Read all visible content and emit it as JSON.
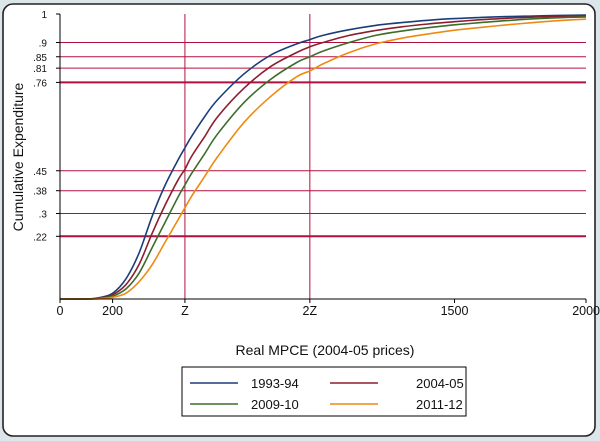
{
  "chart_data": {
    "type": "line",
    "xlabel": "Real MPCE (2004-05 prices)",
    "ylabel": "Cumulative Expenditure",
    "xlim": [
      0,
      2000
    ],
    "ylim": [
      0,
      1
    ],
    "x_ticks": [
      {
        "value": 0,
        "label": "0"
      },
      {
        "value": 200,
        "label": "200"
      },
      {
        "value": 475,
        "label": "Z"
      },
      {
        "value": 950,
        "label": "2Z"
      },
      {
        "value": 1500,
        "label": "1500"
      },
      {
        "value": 2000,
        "label": "2000"
      }
    ],
    "y_ticks": [
      {
        "value": 1,
        "label": "1"
      },
      {
        "value": 0.9,
        "label": ".9"
      },
      {
        "value": 0.85,
        "label": ".85"
      },
      {
        "value": 0.81,
        "label": ".81"
      },
      {
        "value": 0.76,
        "label": ".76"
      },
      {
        "value": 0.45,
        "label": ".45"
      },
      {
        "value": 0.38,
        "label": ".38"
      },
      {
        "value": 0.3,
        "label": ".3"
      },
      {
        "value": 0.22,
        "label": ".22"
      }
    ],
    "reference_lines": {
      "vertical": [
        475,
        950
      ],
      "horizontal": [
        0.9,
        0.85,
        0.81,
        0.76,
        0.45,
        0.38,
        0.3,
        0.22
      ],
      "thick_horizontal": [
        0.76,
        0.22
      ],
      "color": "#b01040"
    },
    "x": [
      0,
      100,
      150,
      200,
      250,
      300,
      350,
      400,
      450,
      475,
      500,
      550,
      600,
      700,
      800,
      900,
      950,
      1000,
      1100,
      1200,
      1300,
      1400,
      1500,
      1600,
      1700,
      1800,
      1900,
      2000
    ],
    "series": [
      {
        "name": "1993-94",
        "color": "#1a3e7a",
        "values": [
          0,
          0,
          0.005,
          0.02,
          0.07,
          0.16,
          0.29,
          0.4,
          0.49,
          0.53,
          0.57,
          0.64,
          0.7,
          0.79,
          0.855,
          0.895,
          0.91,
          0.925,
          0.945,
          0.96,
          0.97,
          0.978,
          0.984,
          0.988,
          0.991,
          0.993,
          0.995,
          0.996
        ]
      },
      {
        "name": "2004-05",
        "color": "#8b1f2e",
        "values": [
          0,
          0,
          0.003,
          0.015,
          0.05,
          0.12,
          0.23,
          0.33,
          0.42,
          0.455,
          0.5,
          0.57,
          0.64,
          0.74,
          0.815,
          0.865,
          0.885,
          0.9,
          0.925,
          0.942,
          0.955,
          0.965,
          0.973,
          0.98,
          0.985,
          0.989,
          0.992,
          0.994
        ]
      },
      {
        "name": "2009-10",
        "color": "#3b6e2a",
        "values": [
          0,
          0,
          0.002,
          0.01,
          0.035,
          0.09,
          0.18,
          0.27,
          0.36,
          0.4,
          0.44,
          0.51,
          0.58,
          0.69,
          0.77,
          0.83,
          0.85,
          0.87,
          0.9,
          0.925,
          0.94,
          0.952,
          0.962,
          0.97,
          0.977,
          0.983,
          0.987,
          0.99
        ]
      },
      {
        "name": "2011-12",
        "color": "#ee8a12",
        "values": [
          0,
          0,
          0.001,
          0.006,
          0.02,
          0.06,
          0.12,
          0.2,
          0.28,
          0.32,
          0.36,
          0.43,
          0.5,
          0.62,
          0.71,
          0.78,
          0.8,
          0.825,
          0.865,
          0.895,
          0.915,
          0.93,
          0.943,
          0.953,
          0.962,
          0.97,
          0.977,
          0.982
        ]
      }
    ],
    "legend_position": "bottom",
    "grid": false
  }
}
